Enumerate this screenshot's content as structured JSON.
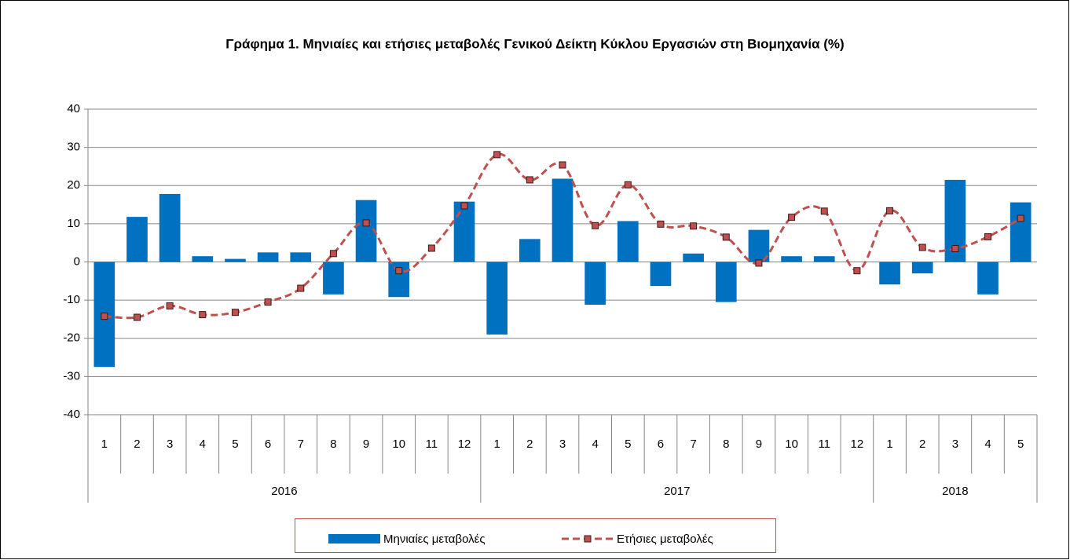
{
  "chart_data": {
    "type": "bar_line",
    "title": "Γράφημα 1. Μηνιαίες και ετήσιες μεταβολές  Γενικού Δείκτη Κύκλου Εργασιών στη Βιομηχανία (%)",
    "groups": [
      {
        "label": "2016",
        "categories": [
          "1",
          "2",
          "3",
          "4",
          "5",
          "6",
          "7",
          "8",
          "9",
          "10",
          "11",
          "12"
        ]
      },
      {
        "label": "2017",
        "categories": [
          "1",
          "2",
          "3",
          "4",
          "5",
          "6",
          "7",
          "8",
          "9",
          "10",
          "11",
          "12"
        ]
      },
      {
        "label": "2018",
        "categories": [
          "1",
          "2",
          "3",
          "4",
          "5"
        ]
      }
    ],
    "series": [
      {
        "name": "Μηνιαίες μεταβολές",
        "type": "bar",
        "color": "#0070c0",
        "values": [
          -27.5,
          11.8,
          17.8,
          1.5,
          0.8,
          2.5,
          2.5,
          -8.5,
          16.2,
          -9.2,
          0,
          15.8,
          -19,
          6,
          21.8,
          -11.2,
          10.7,
          -6.3,
          2.2,
          -10.5,
          8.4,
          1.5,
          1.5,
          0,
          -5.9,
          -3,
          21.5,
          -8.5,
          15.6
        ]
      },
      {
        "name": "Ετήσιες μεταβολές",
        "type": "line",
        "color": "#c0504d",
        "values": [
          -14.2,
          -14.5,
          -11.5,
          -13.8,
          -13.2,
          -10.5,
          -6.9,
          2.2,
          10.2,
          -2.3,
          3.6,
          14.7,
          28.1,
          21.5,
          25.4,
          9.5,
          20.2,
          9.9,
          9.4,
          6.5,
          -0.3,
          11.7,
          13.3,
          -2.3,
          13.4,
          3.8,
          3.5,
          6.6,
          11.4
        ]
      }
    ],
    "ylim": [
      -40,
      40
    ],
    "yticks": [
      -40,
      -30,
      -20,
      -10,
      0,
      10,
      20,
      30,
      40
    ],
    "grid": true
  }
}
